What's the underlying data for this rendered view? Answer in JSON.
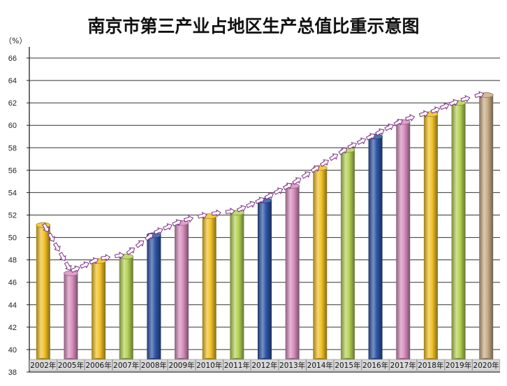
{
  "chart_data": {
    "type": "bar",
    "title": "南京市第三产业占地区生产总值比重示意图",
    "unit_label": "（%）",
    "categories": [
      "2002年",
      "2005年",
      "2006年",
      "2007年",
      "2008年",
      "2009年",
      "2010年",
      "2011年",
      "2012年",
      "2013年",
      "2014年",
      "2015年",
      "2016年",
      "2017年",
      "2018年",
      "2019年",
      "2020年"
    ],
    "values": [
      51.1,
      46.8,
      47.9,
      48.3,
      50.2,
      51.3,
      51.9,
      52.2,
      53.3,
      54.6,
      56.2,
      57.8,
      59.0,
      60.3,
      61.0,
      62.0,
      62.7
    ],
    "ylim": [
      38,
      67
    ],
    "yticks": [
      38,
      40,
      42,
      44,
      46,
      48,
      50,
      52,
      54,
      56,
      58,
      60,
      62,
      64,
      66
    ],
    "bar_colors": [
      "#F2C227",
      "#D98FBF",
      "#F2C227",
      "#B7D357",
      "#2E55A6",
      "#D98FBF",
      "#F2C227",
      "#B7D357",
      "#2E55A6",
      "#D98FBF",
      "#F2C227",
      "#B7D357",
      "#2E55A6",
      "#D98FBF",
      "#F2C227",
      "#B7D357",
      "#C9AE86"
    ],
    "grid": true,
    "trend_arrows": true,
    "arrow_color": "#7A2E86"
  }
}
